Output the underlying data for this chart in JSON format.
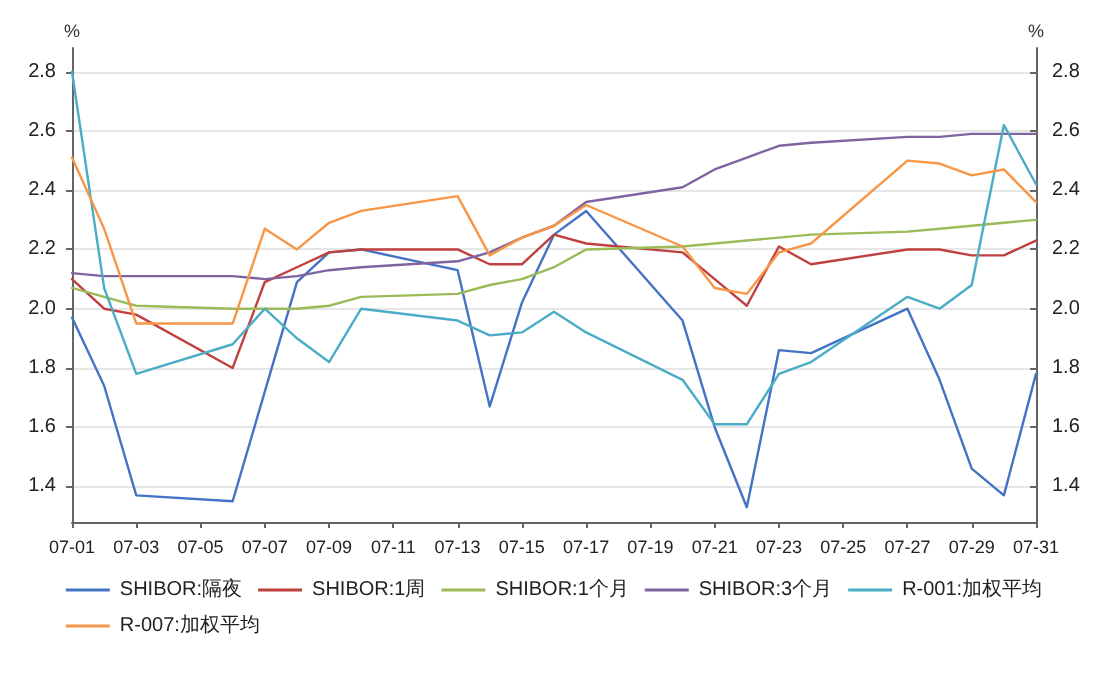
{
  "chart_data": {
    "type": "line",
    "ylabel": "%",
    "y2label": "%",
    "x": [
      "--07-01",
      "--07-02",
      "--07-03",
      "--07-06",
      "--07-07",
      "--07-08",
      "--07-09",
      "--07-10",
      "--07-13",
      "--07-14",
      "--07-15",
      "--07-16",
      "--07-17",
      "--07-20",
      "--07-21",
      "--07-22",
      "--07-23",
      "--07-24",
      "--07-27",
      "--07-28",
      "--07-29",
      "--07-30",
      "--07-31"
    ],
    "xlim": [
      "--07-01",
      "--07-31"
    ],
    "xticks": [
      {
        "value": "--07-01",
        "label": "07-01"
      },
      {
        "value": "--07-03",
        "label": "07-03"
      },
      {
        "value": "--07-05",
        "label": "07-05"
      },
      {
        "value": "--07-07",
        "label": "07-07"
      },
      {
        "value": "--07-09",
        "label": "07-09"
      },
      {
        "value": "--07-11",
        "label": "07-11"
      },
      {
        "value": "--07-13",
        "label": "07-13"
      },
      {
        "value": "--07-15",
        "label": "07-15"
      },
      {
        "value": "--07-17",
        "label": "07-17"
      },
      {
        "value": "--07-19",
        "label": "07-19"
      },
      {
        "value": "--07-21",
        "label": "07-21"
      },
      {
        "value": "--07-23",
        "label": "07-23"
      },
      {
        "value": "--07-25",
        "label": "07-25"
      },
      {
        "value": "--07-27",
        "label": "07-27"
      },
      {
        "value": "--07-29",
        "label": "07-29"
      },
      {
        "value": "--07-31",
        "label": "07-31"
      }
    ],
    "ylim": [
      1.28,
      2.88
    ],
    "yticks": [
      1.4,
      1.6,
      1.8,
      {
        "value": 2.0,
        "label": "2.0"
      },
      2.2,
      2.4,
      2.6,
      2.8
    ],
    "y2lim": [
      1.28,
      2.88
    ],
    "y2ticks": [
      1.4,
      1.6,
      1.8,
      {
        "value": 2.0,
        "label": "2.0"
      },
      2.2,
      2.4,
      2.6,
      2.8
    ],
    "grid": "y",
    "legend": "bottom",
    "marker": "none",
    "line_style": "solid",
    "series": [
      {
        "name": "SHIBOR:隔夜",
        "color": "#4573c4",
        "values": [
          1.97,
          1.74,
          1.37,
          1.35,
          1.72,
          2.09,
          2.19,
          2.2,
          2.13,
          1.67,
          2.02,
          2.25,
          2.33,
          1.96,
          1.6,
          1.33,
          1.86,
          1.85,
          2.0,
          1.76,
          1.46,
          1.37,
          1.78
        ]
      },
      {
        "name": "SHIBOR:1周",
        "color": "#c0403f",
        "values": [
          2.1,
          2.0,
          1.98,
          1.8,
          2.09,
          2.14,
          2.19,
          2.2,
          2.2,
          2.15,
          2.15,
          2.25,
          2.22,
          2.19,
          2.1,
          2.01,
          2.21,
          2.15,
          2.2,
          2.2,
          2.18,
          2.18,
          2.23
        ]
      },
      {
        "name": "SHIBOR:1个月",
        "color": "#9bbb59",
        "values": [
          2.07,
          2.04,
          2.01,
          2.0,
          2.0,
          2.0,
          2.01,
          2.04,
          2.05,
          2.08,
          2.1,
          2.14,
          2.2,
          2.21,
          2.22,
          2.23,
          2.24,
          2.25,
          2.26,
          2.27,
          2.28,
          2.29,
          2.3
        ]
      },
      {
        "name": "SHIBOR:3个月",
        "color": "#8064a2",
        "values": [
          2.12,
          2.11,
          2.11,
          2.11,
          2.1,
          2.11,
          2.13,
          2.14,
          2.16,
          2.19,
          2.24,
          2.28,
          2.36,
          2.41,
          2.47,
          2.51,
          2.55,
          2.56,
          2.58,
          2.58,
          2.59,
          2.59,
          2.59
        ]
      },
      {
        "name": "R-001:加权平均",
        "color": "#4bacc6",
        "values": [
          2.8,
          2.07,
          1.78,
          1.88,
          2.0,
          1.9,
          1.82,
          2.0,
          1.96,
          1.91,
          1.92,
          1.99,
          1.92,
          1.76,
          1.61,
          1.61,
          1.78,
          1.82,
          2.04,
          2.0,
          2.08,
          2.62,
          2.42
        ]
      },
      {
        "name": "R-007:加权平均",
        "color": "#f79646",
        "values": [
          2.51,
          2.27,
          1.95,
          1.95,
          2.27,
          2.2,
          2.29,
          2.33,
          2.38,
          2.18,
          2.24,
          2.28,
          2.35,
          2.21,
          2.07,
          2.05,
          2.19,
          2.22,
          2.5,
          2.49,
          2.45,
          2.47,
          2.36
        ]
      }
    ]
  }
}
